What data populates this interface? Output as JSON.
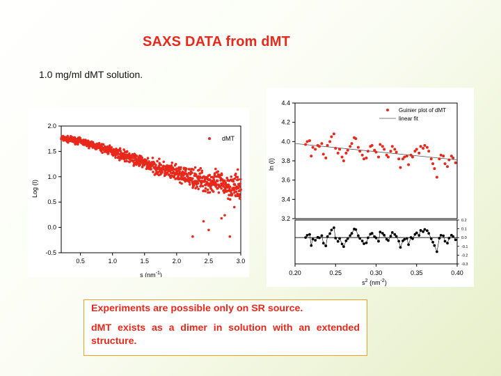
{
  "slide": {
    "title": "SAXS DATA from dMT",
    "subtitle": "1.0 mg/ml dMT  solution.",
    "note_line1": "Experiments are possible only on SR source.",
    "note_line2": "dMT exists as a dimer in solution with an extended structure."
  },
  "colors": {
    "title": "#e8281b",
    "points": "#e8281b",
    "residuals": "#000000",
    "note_border": "#f0a020"
  },
  "chart_data": [
    {
      "type": "scatter",
      "xlabel": "s (nm",
      "xlabel_sup": "-1",
      "xlabel_end": ")",
      "ylabel": "Log (I)",
      "xlim": [
        0.2,
        3.0
      ],
      "ylim": [
        -0.5,
        2.0
      ],
      "xticks": [
        "0.5",
        "1.0",
        "1.5",
        "2.0",
        "2.5",
        "3.0"
      ],
      "yticks": [
        "2.0",
        "1.5",
        "1.0",
        "0.5",
        "0.0",
        "-0.5"
      ],
      "legend_position": "top-right",
      "grid": false,
      "series": [
        {
          "name": "dMT",
          "description": "dense curve: log(I) falls roughly linearly from about 1.75 at s=0.2 to about 0.8 at s=3.0 with noise growing at high s",
          "trend": [
            [
              0.2,
              1.76
            ],
            [
              0.5,
              1.7
            ],
            [
              1.0,
              1.5
            ],
            [
              1.5,
              1.27
            ],
            [
              2.0,
              1.05
            ],
            [
              2.5,
              0.9
            ],
            [
              3.0,
              0.78
            ]
          ],
          "outliers": [
            [
              2.25,
              -0.18
            ],
            [
              2.42,
              0.12
            ],
            [
              2.5,
              -0.05
            ],
            [
              2.7,
              0.18
            ],
            [
              2.75,
              0.24
            ],
            [
              2.83,
              -0.18
            ],
            [
              2.9,
              0.4
            ]
          ]
        }
      ]
    },
    {
      "type": "scatter",
      "xlabel": "s",
      "xlabel_sup1": "2",
      "xlabel_mid": " (nm",
      "xlabel_sup2": "-2",
      "xlabel_end": ")",
      "ylabel": "ln (I)",
      "xlim": [
        0.2,
        0.4
      ],
      "ylim": [
        3.2,
        4.4
      ],
      "xticks": [
        "0.20",
        "0.25",
        "0.30",
        "0.35",
        "0.40"
      ],
      "yticks": [
        "4.4",
        "4.2",
        "4.0",
        "3.8",
        "3.6",
        "3.4",
        "3.2"
      ],
      "legend_position": "top-right",
      "series": [
        {
          "name": "Guinier plot of dMT",
          "points": [
            [
              0.213,
              3.97
            ],
            [
              0.215,
              4.0
            ],
            [
              0.218,
              4.01
            ],
            [
              0.22,
              3.85
            ],
            [
              0.222,
              3.94
            ],
            [
              0.225,
              3.92
            ],
            [
              0.228,
              3.96
            ],
            [
              0.23,
              3.95
            ],
            [
              0.233,
              3.98
            ],
            [
              0.235,
              3.87
            ],
            [
              0.238,
              3.83
            ],
            [
              0.24,
              3.96
            ],
            [
              0.243,
              4.0
            ],
            [
              0.245,
              4.05
            ],
            [
              0.248,
              4.08
            ],
            [
              0.25,
              3.93
            ],
            [
              0.253,
              3.88
            ],
            [
              0.255,
              3.92
            ],
            [
              0.258,
              3.84
            ],
            [
              0.26,
              3.8
            ],
            [
              0.263,
              3.88
            ],
            [
              0.265,
              3.91
            ],
            [
              0.268,
              3.95
            ],
            [
              0.27,
              3.98
            ],
            [
              0.273,
              4.04
            ],
            [
              0.275,
              4.03
            ],
            [
              0.278,
              3.94
            ],
            [
              0.28,
              3.9
            ],
            [
              0.283,
              3.86
            ],
            [
              0.285,
              3.82
            ],
            [
              0.288,
              3.83
            ],
            [
              0.29,
              3.9
            ],
            [
              0.293,
              3.95
            ],
            [
              0.295,
              3.96
            ],
            [
              0.298,
              3.91
            ],
            [
              0.3,
              3.89
            ],
            [
              0.303,
              3.84
            ],
            [
              0.305,
              3.97
            ],
            [
              0.308,
              3.95
            ],
            [
              0.31,
              3.92
            ],
            [
              0.313,
              3.86
            ],
            [
              0.315,
              3.84
            ],
            [
              0.318,
              3.9
            ],
            [
              0.32,
              3.95
            ],
            [
              0.323,
              3.92
            ],
            [
              0.325,
              3.89
            ],
            [
              0.328,
              3.82
            ],
            [
              0.33,
              3.73
            ],
            [
              0.333,
              3.82
            ],
            [
              0.335,
              3.84
            ],
            [
              0.338,
              3.85
            ],
            [
              0.34,
              3.76
            ],
            [
              0.343,
              3.86
            ],
            [
              0.345,
              3.84
            ],
            [
              0.348,
              3.9
            ],
            [
              0.35,
              3.92
            ],
            [
              0.353,
              3.88
            ],
            [
              0.355,
              3.95
            ],
            [
              0.358,
              3.93
            ],
            [
              0.36,
              3.96
            ],
            [
              0.363,
              3.94
            ],
            [
              0.365,
              3.9
            ],
            [
              0.368,
              3.82
            ],
            [
              0.37,
              3.77
            ],
            [
              0.372,
              3.72
            ],
            [
              0.375,
              3.63
            ],
            [
              0.378,
              3.82
            ],
            [
              0.38,
              3.86
            ],
            [
              0.383,
              3.85
            ],
            [
              0.385,
              3.77
            ],
            [
              0.388,
              3.74
            ],
            [
              0.39,
              3.81
            ],
            [
              0.393,
              3.85
            ],
            [
              0.395,
              3.83
            ],
            [
              0.398,
              3.78
            ]
          ]
        },
        {
          "name": "linear fit",
          "line": [
            [
              0.2,
              3.98
            ],
            [
              0.4,
              3.81
            ]
          ]
        }
      ],
      "residual_panel": {
        "ylim": [
          -0.3,
          0.2
        ],
        "yticks": [
          "0.2",
          "0.1",
          "0.0",
          "-0.1",
          "-0.2",
          "-0.3"
        ]
      }
    }
  ]
}
